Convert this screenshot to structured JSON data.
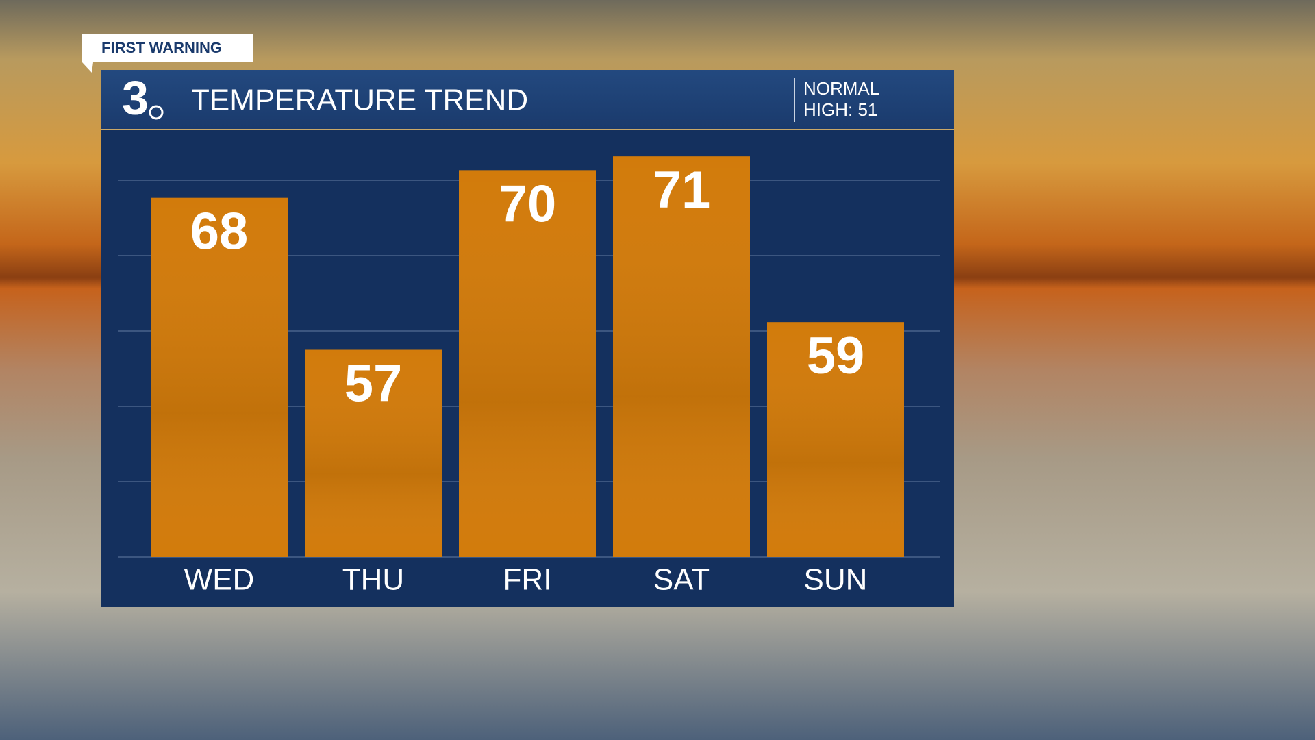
{
  "tag": "FIRST WARNING",
  "logo": "3",
  "normal": {
    "line1": "NORMAL",
    "line2": "HIGH: 51"
  },
  "chart_data": {
    "type": "bar",
    "title": "TEMPERATURE TREND",
    "categories": [
      "WED",
      "THU",
      "FRI",
      "SAT",
      "SUN"
    ],
    "values": [
      68,
      57,
      70,
      71,
      59
    ],
    "color": "#d27b0b",
    "ylim": [
      42,
      72
    ],
    "grid": true
  }
}
